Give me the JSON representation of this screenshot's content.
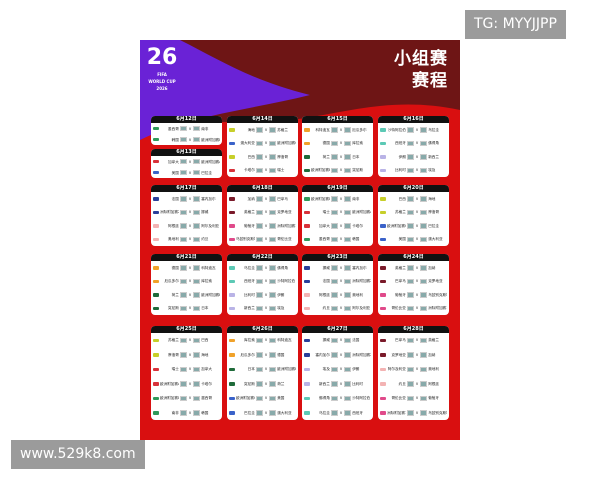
{
  "watermarks": {
    "top": "TG: MYYJJPP",
    "bottom": "www.529k8.com"
  },
  "poster": {
    "title_line1": "小组赛",
    "title_line2": "赛程",
    "logo": {
      "number": "26",
      "fifa": "FIFA",
      "sub1": "WORLD CUP",
      "sub2": "2026"
    },
    "colors": {
      "background": "#d90f10",
      "purple": "#6a22d6",
      "maroon": "#6e1515",
      "card_header": "#111111"
    },
    "versus": "v",
    "days": [
      {
        "date": "6月12日",
        "matches": [
          [
            "墨西哥",
            "南非",
            "A"
          ],
          [
            "韩国",
            "欧洲附加赛D",
            "A"
          ]
        ]
      },
      {
        "date": "6月13日",
        "matches": [
          [
            "加拿大",
            "欧洲附加赛A",
            "B"
          ],
          [
            "美国",
            "巴拉圭",
            "D"
          ]
        ]
      },
      {
        "date": "6月14日",
        "matches": [
          [
            "海地",
            "苏格兰",
            "C"
          ],
          [
            "澳大利亚",
            "欧洲附加赛C",
            "D"
          ],
          [
            "巴西",
            "摩洛哥",
            "C"
          ],
          [
            "卡塔尔",
            "瑞士",
            "B"
          ]
        ]
      },
      {
        "date": "6月15日",
        "matches": [
          [
            "科特迪瓦",
            "厄瓜多尔",
            "E"
          ],
          [
            "德国",
            "库拉索",
            "E"
          ],
          [
            "荷兰",
            "日本",
            "F"
          ],
          [
            "欧洲附加赛B",
            "突尼斯",
            "F"
          ]
        ]
      },
      {
        "date": "6月16日",
        "matches": [
          [
            "沙特阿拉伯",
            "乌拉圭",
            "H"
          ],
          [
            "西班牙",
            "佛得角",
            "H"
          ],
          [
            "伊朗",
            "新西兰",
            "G"
          ],
          [
            "比利时",
            "埃及",
            "G"
          ]
        ]
      },
      {
        "date": "6月17日",
        "matches": [
          [
            "法国",
            "塞内加尔",
            "I"
          ],
          [
            "洲际附加赛2",
            "挪威",
            "I"
          ],
          [
            "阿根廷",
            "阿尔及利亚",
            "J"
          ],
          [
            "奥地利",
            "约旦",
            "J"
          ]
        ]
      },
      {
        "date": "6月18日",
        "matches": [
          [
            "加纳",
            "巴拿马",
            "L"
          ],
          [
            "英格兰",
            "克罗地亚",
            "L"
          ],
          [
            "葡萄牙",
            "洲际附加赛1",
            "K"
          ],
          [
            "乌兹别克斯坦",
            "哥伦比亚",
            "K"
          ]
        ]
      },
      {
        "date": "6月19日",
        "matches": [
          [
            "欧洲附加赛D",
            "南非",
            "A"
          ],
          [
            "瑞士",
            "欧洲附加赛A",
            "B"
          ],
          [
            "加拿大",
            "卡塔尔",
            "B"
          ],
          [
            "墨西哥",
            "韩国",
            "A"
          ]
        ]
      },
      {
        "date": "6月20日",
        "matches": [
          [
            "巴西",
            "海地",
            "C"
          ],
          [
            "苏格兰",
            "摩洛哥",
            "C"
          ],
          [
            "欧洲附加赛C",
            "巴拉圭",
            "D"
          ],
          [
            "美国",
            "澳大利亚",
            "D"
          ]
        ]
      },
      {
        "date": "6月21日",
        "matches": [
          [
            "德国",
            "科特迪瓦",
            "E"
          ],
          [
            "厄瓜多尔",
            "库拉索",
            "E"
          ],
          [
            "荷兰",
            "欧洲附加赛B",
            "F"
          ],
          [
            "突尼斯",
            "日本",
            "F"
          ]
        ]
      },
      {
        "date": "6月22日",
        "matches": [
          [
            "乌拉圭",
            "佛得角",
            "H"
          ],
          [
            "西班牙",
            "沙特阿拉伯",
            "H"
          ],
          [
            "比利时",
            "伊朗",
            "G"
          ],
          [
            "新西兰",
            "埃及",
            "G"
          ]
        ]
      },
      {
        "date": "6月23日",
        "matches": [
          [
            "挪威",
            "塞内加尔",
            "I"
          ],
          [
            "法国",
            "洲际附加赛2",
            "I"
          ],
          [
            "阿根廷",
            "奥地利",
            "J"
          ],
          [
            "约旦",
            "阿尔及利亚",
            "J"
          ]
        ]
      },
      {
        "date": "6月24日",
        "matches": [
          [
            "英格兰",
            "加纳",
            "L"
          ],
          [
            "巴拿马",
            "克罗地亚",
            "L"
          ],
          [
            "葡萄牙",
            "乌兹别克斯坦",
            "K"
          ],
          [
            "哥伦比亚",
            "洲际附加赛1",
            "K"
          ]
        ]
      },
      {
        "date": "6月25日",
        "matches": [
          [
            "苏格兰",
            "巴西",
            "C"
          ],
          [
            "摩洛哥",
            "海地",
            "C"
          ],
          [
            "瑞士",
            "加拿大",
            "B"
          ],
          [
            "欧洲附加赛A",
            "卡塔尔",
            "B"
          ],
          [
            "欧洲附加赛D",
            "墨西哥",
            "A"
          ],
          [
            "南非",
            "韩国",
            "A"
          ]
        ]
      },
      {
        "date": "6月26日",
        "matches": [
          [
            "库拉索",
            "科特迪瓦",
            "E"
          ],
          [
            "厄瓜多尔",
            "德国",
            "E"
          ],
          [
            "日本",
            "欧洲附加赛B",
            "F"
          ],
          [
            "突尼斯",
            "荷兰",
            "F"
          ],
          [
            "欧洲附加赛C",
            "美国",
            "D"
          ],
          [
            "巴拉圭",
            "澳大利亚",
            "D"
          ]
        ]
      },
      {
        "date": "6月27日",
        "matches": [
          [
            "挪威",
            "法国",
            "I"
          ],
          [
            "塞内加尔",
            "洲际附加赛2",
            "I"
          ],
          [
            "埃及",
            "伊朗",
            "G"
          ],
          [
            "新西兰",
            "比利时",
            "G"
          ],
          [
            "佛得角",
            "沙特阿拉伯",
            "H"
          ],
          [
            "乌拉圭",
            "西班牙",
            "H"
          ]
        ]
      },
      {
        "date": "6月28日",
        "matches": [
          [
            "巴拿马",
            "英格兰",
            "L"
          ],
          [
            "克罗地亚",
            "加纳",
            "L"
          ],
          [
            "阿尔及利亚",
            "奥地利",
            "J"
          ],
          [
            "约旦",
            "阿根廷",
            "J"
          ],
          [
            "哥伦比亚",
            "葡萄牙",
            "K"
          ],
          [
            "洲际附加赛1",
            "乌兹别克斯坦",
            "K"
          ]
        ]
      }
    ],
    "group_colors": {
      "A": "#2f9a5a",
      "B": "#d8323a",
      "C": "#c7cf2a",
      "D": "#3a62c9",
      "E": "#f0a22a",
      "F": "#1f6b3a",
      "G": "#b9b3e6",
      "H": "#5cc9b5",
      "I": "#2a3f9a",
      "J": "#f3b3b3",
      "K": "#e04a8a",
      "L": "#7a1a2a"
    }
  }
}
